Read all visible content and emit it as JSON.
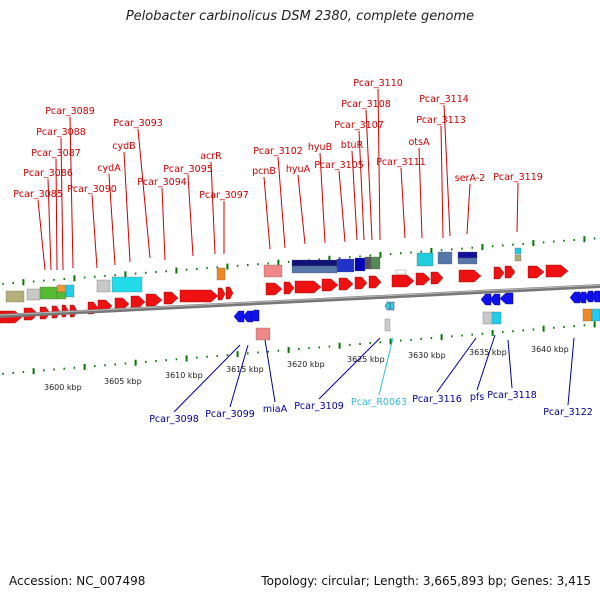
{
  "title": "Pelobacter carbinolicus DSM 2380, complete genome",
  "footer": {
    "accession": "Accession: NC_007498",
    "summary": "Topology: circular; Length: 3,665,893 bp; Genes: 3,415"
  },
  "colors": {
    "forward_label": "#cc0000",
    "reverse_label": "#000099",
    "rna_label": "#33bbdd",
    "tick": "#007700",
    "backbone": "#777777"
  },
  "scale_labels": [
    "3600 kbp",
    "3605 kbp",
    "3610 kbp",
    "3615 kbp",
    "3620 kbp",
    "3625 kbp",
    "3630 kbp",
    "3635 kbp",
    "3640 kbp"
  ],
  "forward_labels": [
    "Pcar_3085",
    "Pcar_3086",
    "Pcar_3087",
    "Pcar_3088",
    "Pcar_3089",
    "Pcar_3090",
    "cydA",
    "cydB",
    "Pcar_3093",
    "Pcar_3094",
    "Pcar_3095",
    "acrR",
    "Pcar_3097",
    "pcnB",
    "Pcar_3102",
    "hyuA",
    "hyuB",
    "Pcar_3105",
    "btuR",
    "Pcar_3107",
    "Pcar_3108",
    "Pcar_3110",
    "Pcar_3111",
    "otsA",
    "Pcar_3113",
    "Pcar_3114",
    "serA-2",
    "Pcar_3119"
  ],
  "reverse_labels": [
    "Pcar_3098",
    "Pcar_3099",
    "miaA",
    "Pcar_3109",
    "Pcar_R0063",
    "Pcar_3116",
    "pfs",
    "Pcar_3118",
    "Pcar_3122"
  ]
}
